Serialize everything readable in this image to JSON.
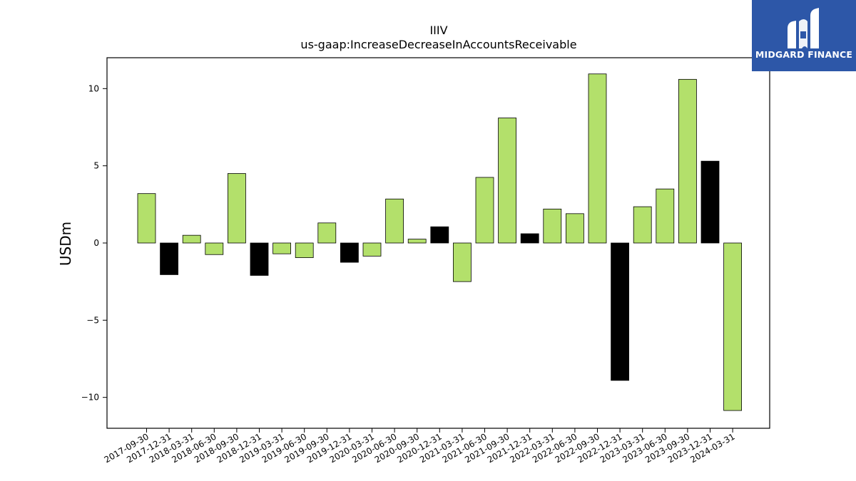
{
  "brand": {
    "name": "MIDGARD FINANCE",
    "color": "#2d57a8",
    "icon": "midgard-logo-icon"
  },
  "chart_data": {
    "type": "bar",
    "title": "IIIV",
    "subtitle": "us-gaap:IncreaseDecreaseInAccountsReceivable",
    "xlabel": "",
    "ylabel": "USDm",
    "ylim": [
      -12.0,
      12.0
    ],
    "yticks": [
      -10,
      -5,
      0,
      5,
      10
    ],
    "ytick_labels": [
      "−10",
      "−5",
      "0",
      "5",
      "10"
    ],
    "grid": false,
    "categories": [
      "2017-09-30",
      "2017-12-31",
      "2018-03-31",
      "2018-06-30",
      "2018-09-30",
      "2018-12-31",
      "2019-03-31",
      "2019-06-30",
      "2019-09-30",
      "2019-12-31",
      "2020-03-31",
      "2020-06-30",
      "2020-09-30",
      "2020-12-31",
      "2021-03-31",
      "2021-06-30",
      "2021-09-30",
      "2021-12-31",
      "2022-03-31",
      "2022-06-30",
      "2022-09-30",
      "2022-12-31",
      "2023-03-31",
      "2023-06-30",
      "2023-09-30",
      "2023-12-31",
      "2024-03-31"
    ],
    "values": [
      3.2,
      -2.05,
      0.5,
      -0.75,
      4.5,
      -2.1,
      -0.7,
      -0.95,
      1.3,
      -1.25,
      -0.85,
      2.85,
      0.25,
      1.05,
      -2.5,
      4.25,
      8.1,
      0.6,
      2.2,
      1.9,
      10.95,
      -8.9,
      2.35,
      3.5,
      10.6,
      5.3,
      -10.85
    ],
    "colors": {
      "quarter": "#b3e06b",
      "year_end": "#000000",
      "edge": "#000000"
    },
    "bar_colors": [
      "quarter",
      "year_end",
      "quarter",
      "quarter",
      "quarter",
      "year_end",
      "quarter",
      "quarter",
      "quarter",
      "year_end",
      "quarter",
      "quarter",
      "quarter",
      "year_end",
      "quarter",
      "quarter",
      "quarter",
      "year_end",
      "quarter",
      "quarter",
      "quarter",
      "year_end",
      "quarter",
      "quarter",
      "quarter",
      "year_end",
      "quarter"
    ]
  }
}
